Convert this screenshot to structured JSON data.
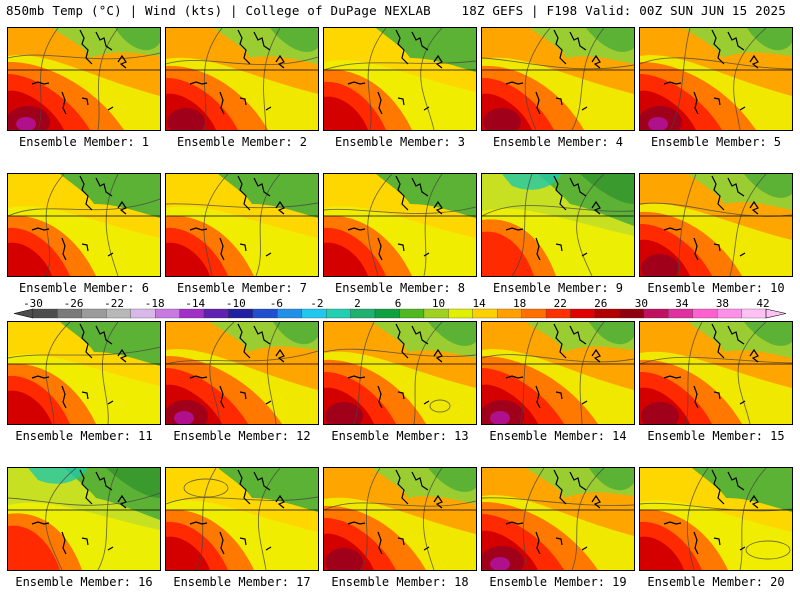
{
  "header": {
    "left": "850mb Temp (°C) | Wind (kts) | College of DuPage NEXLAB",
    "right": "18Z GEFS | F198 Valid: 00Z SUN JUN 15 2025"
  },
  "caption_prefix": "Ensemble Member: ",
  "members": [
    "1",
    "2",
    "3",
    "4",
    "5",
    "6",
    "7",
    "8",
    "9",
    "10",
    "11",
    "12",
    "13",
    "14",
    "15",
    "16",
    "17",
    "18",
    "19",
    "20"
  ],
  "colorbar": {
    "labels": [
      "-30",
      "-26",
      "-22",
      "-18",
      "-14",
      "-10",
      "-6",
      "-2",
      "2",
      "6",
      "10",
      "14",
      "18",
      "22",
      "26",
      "30",
      "34",
      "38",
      "42"
    ],
    "colors": [
      "#4d4d4d",
      "#7a7a7a",
      "#9b9b9b",
      "#b8b8b8",
      "#d8b8e8",
      "#c878e0",
      "#a030c8",
      "#6020b0",
      "#2020a0",
      "#2050d0",
      "#2090e8",
      "#20c8f0",
      "#20d0b0",
      "#20b070",
      "#10a040",
      "#50b820",
      "#a0d020",
      "#e0f000",
      "#ffd000",
      "#ffa000",
      "#ff7000",
      "#ff3000",
      "#e00000",
      "#b00000",
      "#900010",
      "#c01060",
      "#e030a0",
      "#ff60d0",
      "#ff90e8",
      "#ffc0f4"
    ]
  }
}
